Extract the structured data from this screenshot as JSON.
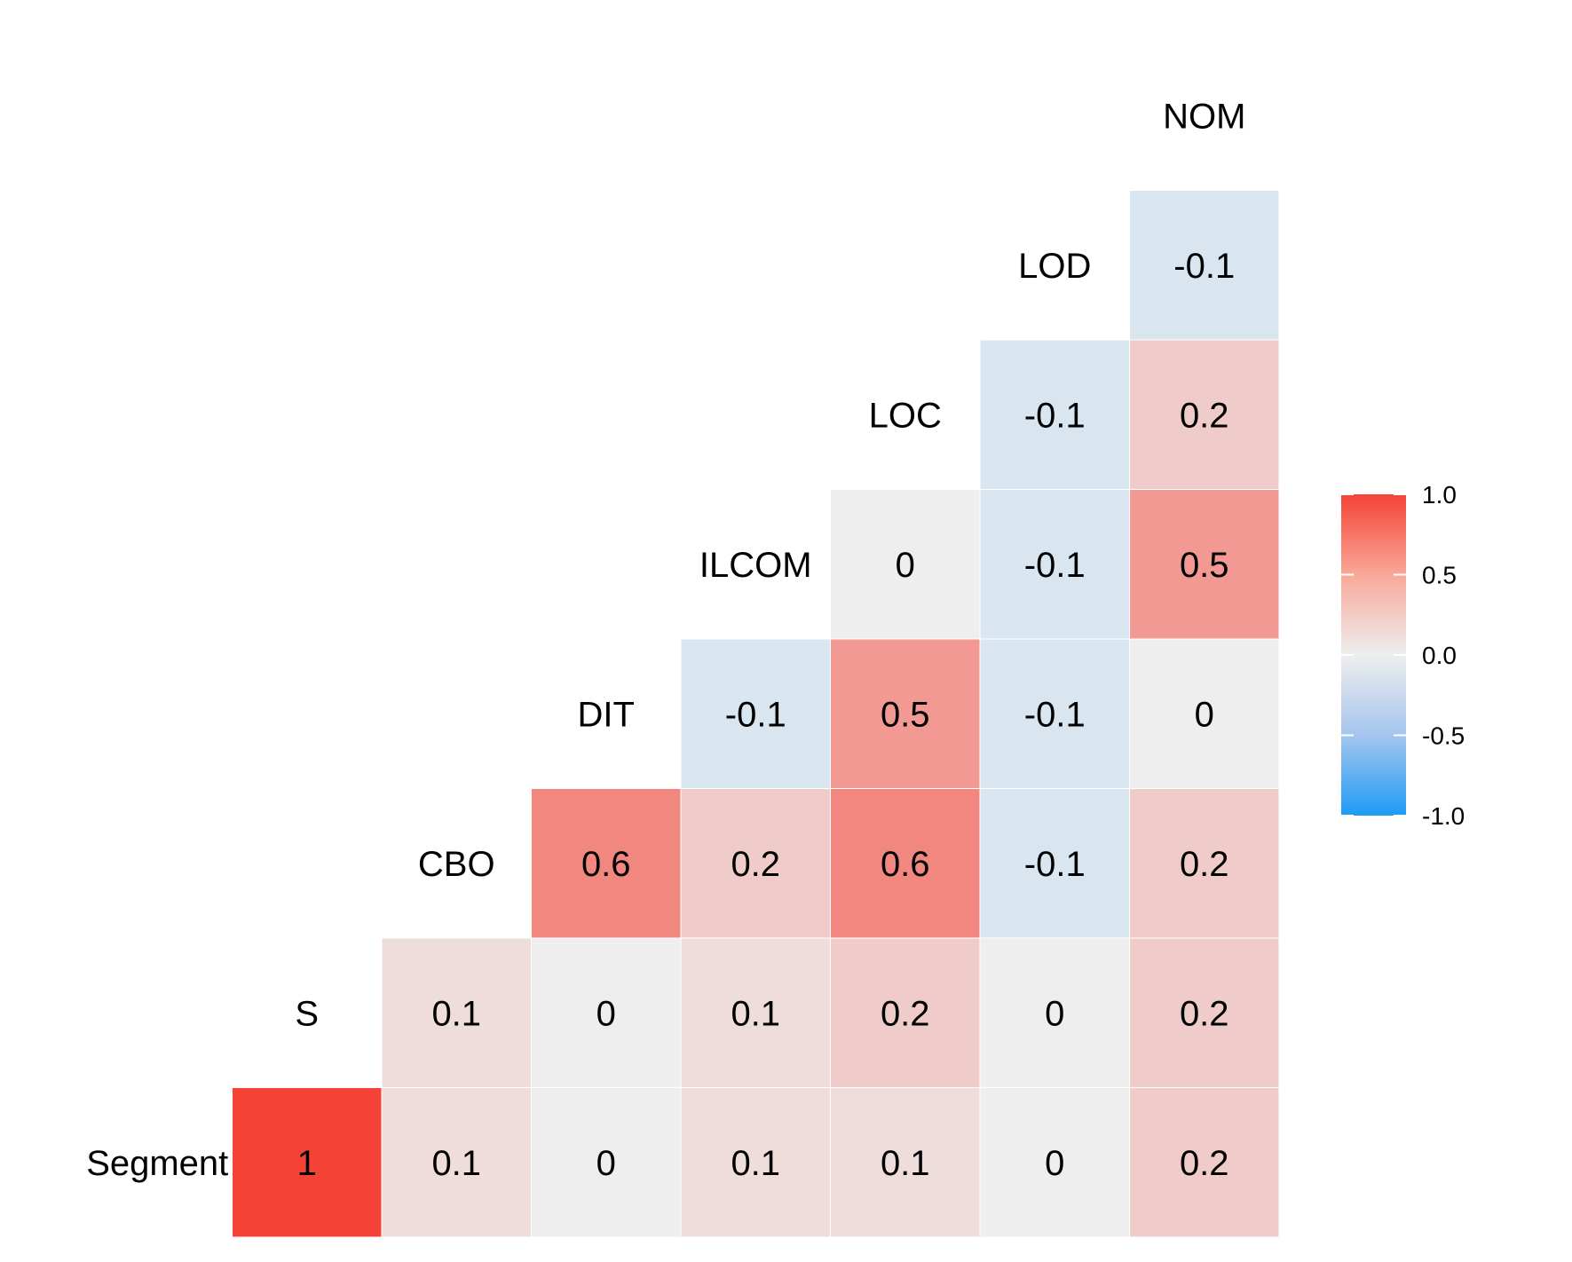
{
  "chart_data": {
    "type": "heatmap",
    "variables": [
      "Segment",
      "S",
      "CBO",
      "DIT",
      "ILCOM",
      "LOC",
      "LOD",
      "NOM"
    ],
    "cells": [
      {
        "row": "Segment",
        "col": "Segment",
        "value": 1,
        "label": "1"
      },
      {
        "row": "Segment",
        "col": "S",
        "value": 0.1,
        "label": "0.1"
      },
      {
        "row": "Segment",
        "col": "CBO",
        "value": 0,
        "label": "0"
      },
      {
        "row": "Segment",
        "col": "DIT",
        "value": 0.1,
        "label": "0.1"
      },
      {
        "row": "Segment",
        "col": "ILCOM",
        "value": 0.1,
        "label": "0.1"
      },
      {
        "row": "Segment",
        "col": "LOC",
        "value": 0,
        "label": "0"
      },
      {
        "row": "Segment",
        "col": "LOD",
        "value": 0.2,
        "label": "0.2"
      },
      {
        "row": "S",
        "col": "S",
        "value": 0.1,
        "label": "0.1"
      },
      {
        "row": "S",
        "col": "CBO",
        "value": 0,
        "label": "0"
      },
      {
        "row": "S",
        "col": "DIT",
        "value": 0.1,
        "label": "0.1"
      },
      {
        "row": "S",
        "col": "ILCOM",
        "value": 0.2,
        "label": "0.2"
      },
      {
        "row": "S",
        "col": "LOC",
        "value": 0,
        "label": "0"
      },
      {
        "row": "S",
        "col": "LOD",
        "value": 0.2,
        "label": "0.2"
      },
      {
        "row": "CBO",
        "col": "CBO",
        "value": 0.6,
        "label": "0.6"
      },
      {
        "row": "CBO",
        "col": "DIT",
        "value": 0.2,
        "label": "0.2"
      },
      {
        "row": "CBO",
        "col": "ILCOM",
        "value": 0.6,
        "label": "0.6"
      },
      {
        "row": "CBO",
        "col": "LOC",
        "value": -0.1,
        "label": "-0.1"
      },
      {
        "row": "CBO",
        "col": "LOD",
        "value": 0.2,
        "label": "0.2"
      },
      {
        "row": "DIT",
        "col": "DIT",
        "value": -0.1,
        "label": "-0.1"
      },
      {
        "row": "DIT",
        "col": "ILCOM",
        "value": 0.5,
        "label": "0.5"
      },
      {
        "row": "DIT",
        "col": "LOC",
        "value": -0.1,
        "label": "-0.1"
      },
      {
        "row": "DIT",
        "col": "LOD",
        "value": 0,
        "label": "0"
      },
      {
        "row": "ILCOM",
        "col": "ILCOM",
        "value": 0,
        "label": "0"
      },
      {
        "row": "ILCOM",
        "col": "LOC",
        "value": -0.1,
        "label": "-0.1"
      },
      {
        "row": "ILCOM",
        "col": "LOD",
        "value": 0.5,
        "label": "0.5"
      },
      {
        "row": "LOC",
        "col": "LOC",
        "value": -0.1,
        "label": "-0.1"
      },
      {
        "row": "LOC",
        "col": "LOD",
        "value": 0.2,
        "label": "0.2"
      },
      {
        "row": "LOD",
        "col": "LOD",
        "value": -0.1,
        "label": "-0.1"
      }
    ],
    "legend": {
      "placement": "right",
      "ticks": [
        "1.0",
        "0.5",
        "0.0",
        "-0.5",
        "-1.0"
      ],
      "tick_values": [
        1.0,
        0.5,
        0.0,
        -0.5,
        -1.0
      ],
      "range": [
        -1.0,
        1.0
      ],
      "colors": {
        "low": "#1E9BF5",
        "mid": "#EEEEEE",
        "high": "#F44336"
      }
    }
  }
}
